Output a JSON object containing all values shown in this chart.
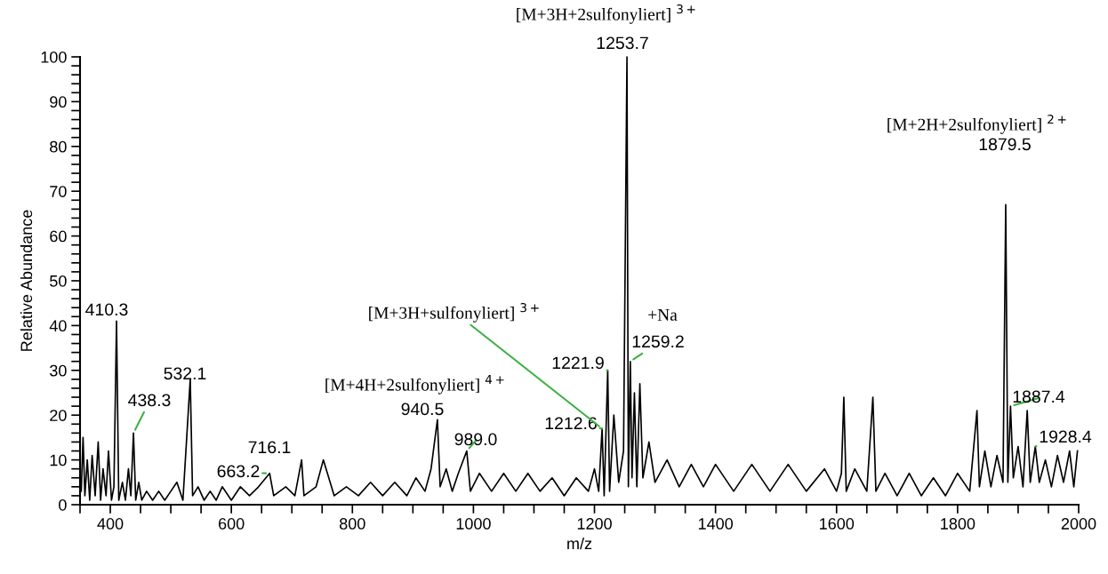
{
  "chart_data": {
    "type": "line",
    "xlabel": "m/z",
    "ylabel": "Relative Abundance",
    "x": [
      352,
      355,
      358,
      362,
      366,
      370,
      375,
      380,
      384,
      388,
      393,
      397,
      402,
      406,
      410.3,
      414,
      420,
      425,
      430,
      434,
      438.3,
      442,
      447,
      452,
      460,
      470,
      480,
      490,
      500,
      510,
      520,
      532.1,
      536,
      545,
      555,
      565,
      575,
      585,
      600,
      615,
      630,
      645,
      663.2,
      670,
      690,
      705,
      716.1,
      720,
      740,
      752,
      770,
      790,
      810,
      830,
      850,
      870,
      890,
      905,
      920,
      930,
      940.5,
      945,
      955,
      965,
      975,
      989.0,
      995,
      1010,
      1030,
      1050,
      1070,
      1090,
      1110,
      1130,
      1150,
      1170,
      1190,
      1200,
      1207,
      1212.6,
      1216,
      1221.9,
      1225,
      1232,
      1240,
      1248,
      1253.7,
      1256,
      1259.2,
      1262,
      1266,
      1270,
      1275,
      1280,
      1290,
      1300,
      1320,
      1340,
      1360,
      1380,
      1400,
      1430,
      1460,
      1490,
      1520,
      1550,
      1580,
      1600,
      1608,
      1612,
      1616,
      1630,
      1650,
      1660,
      1665,
      1680,
      1700,
      1720,
      1740,
      1760,
      1780,
      1800,
      1820,
      1832,
      1836,
      1845,
      1855,
      1865,
      1875,
      1879.5,
      1883,
      1887.4,
      1892,
      1900,
      1908,
      1915,
      1920,
      1928.4,
      1935,
      1945,
      1955,
      1965,
      1975,
      1985,
      1992,
      1998
    ],
    "series": [
      {
        "color": "#000000",
        "values": [
          3,
          15,
          2,
          10,
          1,
          11,
          2,
          14,
          1,
          8,
          2,
          12,
          1,
          4,
          41,
          1,
          5,
          1,
          8,
          2,
          16,
          1,
          5,
          1,
          3,
          1,
          3,
          1,
          3,
          5,
          1,
          28,
          2,
          4,
          1,
          3,
          1,
          4,
          1,
          4,
          2,
          4,
          7,
          2,
          4,
          2,
          10,
          2,
          4,
          10,
          2,
          4,
          2,
          5,
          2,
          5,
          2,
          6,
          3,
          8,
          19,
          4,
          8,
          3,
          7,
          12,
          3,
          7,
          3,
          7,
          3,
          7,
          3,
          6,
          2,
          6,
          3,
          8,
          3,
          17,
          2,
          30,
          3,
          20,
          5,
          12,
          100,
          4,
          32,
          6,
          25,
          4,
          27,
          6,
          14,
          5,
          10,
          4,
          9,
          4,
          9,
          3,
          9,
          3,
          9,
          3,
          8,
          3,
          7,
          24,
          3,
          8,
          3,
          24,
          3,
          7,
          2,
          7,
          2,
          6,
          2,
          7,
          3,
          21,
          4,
          12,
          4,
          11,
          5,
          67,
          5,
          22,
          6,
          13,
          4,
          21,
          5,
          13,
          5,
          10,
          4,
          11,
          5,
          12,
          4,
          12
        ]
      }
    ],
    "xlim": [
      350,
      2000
    ],
    "ylim": [
      0,
      100
    ],
    "xticks": [
      {
        "value": 350,
        "label": null
      },
      400,
      {
        "value": 450,
        "label": null
      },
      {
        "value": 500,
        "label": null
      },
      {
        "value": 550,
        "label": null
      },
      600,
      {
        "value": 650,
        "label": null
      },
      {
        "value": 700,
        "label": null
      },
      {
        "value": 750,
        "label": null
      },
      800,
      {
        "value": 850,
        "label": null
      },
      {
        "value": 900,
        "label": null
      },
      {
        "value": 950,
        "label": null
      },
      1000,
      {
        "value": 1050,
        "label": null
      },
      {
        "value": 1100,
        "label": null
      },
      {
        "value": 1150,
        "label": null
      },
      1200,
      {
        "value": 1250,
        "label": null
      },
      {
        "value": 1300,
        "label": null
      },
      {
        "value": 1350,
        "label": null
      },
      1400,
      {
        "value": 1450,
        "label": null
      },
      {
        "value": 1500,
        "label": null
      },
      {
        "value": 1550,
        "label": null
      },
      1600,
      {
        "value": 1650,
        "label": null
      },
      {
        "value": 1700,
        "label": null
      },
      {
        "value": 1750,
        "label": null
      },
      1800,
      {
        "value": 1850,
        "label": null
      },
      {
        "value": 1900,
        "label": null
      },
      {
        "value": 1950,
        "label": null
      },
      2000
    ],
    "yticks": [
      0,
      {
        "value": 2,
        "label": null
      },
      {
        "value": 4,
        "label": null
      },
      {
        "value": 6,
        "label": null
      },
      {
        "value": 8,
        "label": null
      },
      10,
      {
        "value": 12,
        "label": null
      },
      {
        "value": 14,
        "label": null
      },
      {
        "value": 16,
        "label": null
      },
      {
        "value": 18,
        "label": null
      },
      20,
      {
        "value": 22,
        "label": null
      },
      {
        "value": 24,
        "label": null
      },
      {
        "value": 26,
        "label": null
      },
      {
        "value": 28,
        "label": null
      },
      30,
      {
        "value": 32,
        "label": null
      },
      {
        "value": 34,
        "label": null
      },
      {
        "value": 36,
        "label": null
      },
      {
        "value": 38,
        "label": null
      },
      40,
      {
        "value": 42,
        "label": null
      },
      {
        "value": 44,
        "label": null
      },
      {
        "value": 46,
        "label": null
      },
      {
        "value": 48,
        "label": null
      },
      50,
      {
        "value": 52,
        "label": null
      },
      {
        "value": 54,
        "label": null
      },
      {
        "value": 56,
        "label": null
      },
      {
        "value": 58,
        "label": null
      },
      60,
      {
        "value": 62,
        "label": null
      },
      {
        "value": 64,
        "label": null
      },
      {
        "value": 66,
        "label": null
      },
      {
        "value": 68,
        "label": null
      },
      70,
      {
        "value": 72,
        "label": null
      },
      {
        "value": 74,
        "label": null
      },
      {
        "value": 76,
        "label": null
      },
      {
        "value": 78,
        "label": null
      },
      80,
      {
        "value": 82,
        "label": null
      },
      {
        "value": 84,
        "label": null
      },
      {
        "value": 86,
        "label": null
      },
      {
        "value": 88,
        "label": null
      },
      90,
      {
        "value": 92,
        "label": null
      },
      {
        "value": 94,
        "label": null
      },
      {
        "value": 96,
        "label": null
      },
      {
        "value": 98,
        "label": null
      },
      100
    ],
    "grid": false,
    "legend": false,
    "marker": "none",
    "line_style": "solid",
    "annotations": [
      {
        "text": "410.3",
        "x": 410.3,
        "y": 41
      },
      {
        "text": "438.3",
        "x": 438.3,
        "y": 16
      },
      {
        "text": "532.1",
        "x": 532.1,
        "y": 28
      },
      {
        "text": "663.2",
        "x": 663.2,
        "y": 7
      },
      {
        "text": "716.1",
        "x": 716.1,
        "y": 10
      },
      {
        "text": "940.5",
        "x": 940.5,
        "y": 19
      },
      {
        "text": "989.0",
        "x": 989.0,
        "y": 12
      },
      {
        "text": "1212.6",
        "x": 1212.6,
        "y": 17
      },
      {
        "text": "1221.9",
        "x": 1221.9,
        "y": 30
      },
      {
        "text": "1253.7",
        "x": 1253.7,
        "y": 100
      },
      {
        "text": "1259.2",
        "x": 1259.2,
        "y": 32
      },
      "1879.5",
      {
        "text": "1887.4",
        "x": 1887.4,
        "y": 22
      },
      {
        "text": "1928.4",
        "x": 1928.4,
        "y": 13
      },
      {
        "text": "[M+3H+2sulfonyliert] $^{3+}$",
        "x": 1253.7,
        "y": 100
      },
      {
        "text": "[M+3H+sulfonyliert] $^{3+}$",
        "x": 1212.6,
        "y": 17
      },
      {
        "text": "[M+4H+2sulfonyliert] $^{4+}$",
        "x": 940.5,
        "y": 19
      },
      {
        "text": "+Na",
        "x": 1259.2,
        "y": 32
      },
      "[M+2H+2sulfonyliert] $^{2+}$"
    ]
  }
}
